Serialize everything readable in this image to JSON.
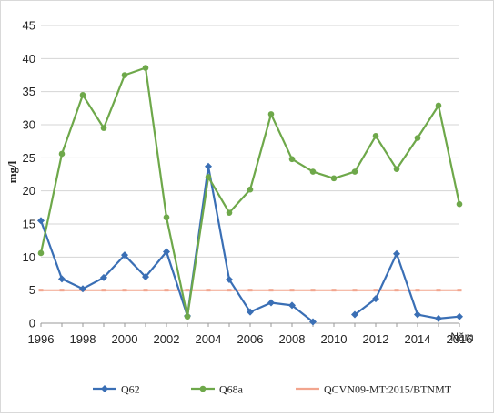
{
  "chart_data": {
    "type": "line",
    "title": "",
    "xlabel": "Năm",
    "ylabel": "mg/l",
    "xlim": [
      1996,
      2016
    ],
    "ylim": [
      0,
      45
    ],
    "x_ticks": [
      "1996",
      "1998",
      "2000",
      "2002",
      "2004",
      "2006",
      "2008",
      "2010",
      "2012",
      "2014",
      "2016"
    ],
    "y_ticks": [
      "0",
      "5",
      "10",
      "15",
      "20",
      "25",
      "30",
      "35",
      "40",
      "45"
    ],
    "grid": "horizontal",
    "legend_position": "bottom",
    "series": [
      {
        "name": "Q62",
        "color": "#3a6fb5",
        "marker": "diamond",
        "points": [
          [
            1996,
            15.5
          ],
          [
            1997,
            6.7
          ],
          [
            1998,
            5.2
          ],
          [
            1999,
            6.9
          ],
          [
            2000,
            10.3
          ],
          [
            2001,
            7.0
          ],
          [
            2002,
            10.8
          ],
          [
            2003,
            1.1
          ],
          [
            2004,
            23.7
          ],
          [
            2005,
            6.6
          ],
          [
            2006,
            1.7
          ],
          [
            2007,
            3.1
          ],
          [
            2008,
            2.7
          ],
          [
            2009,
            0.2
          ],
          [
            2010,
            null
          ],
          [
            2011,
            1.3
          ],
          [
            2012,
            3.7
          ],
          [
            2013,
            10.5
          ],
          [
            2014,
            1.3
          ],
          [
            2015,
            0.7
          ],
          [
            2016,
            1.0
          ]
        ]
      },
      {
        "name": "Q68a",
        "color": "#6ea84a",
        "marker": "circle",
        "points": [
          [
            1996,
            10.6
          ],
          [
            1997,
            25.6
          ],
          [
            1998,
            34.5
          ],
          [
            1999,
            29.5
          ],
          [
            2000,
            37.5
          ],
          [
            2001,
            38.6
          ],
          [
            2002,
            16.0
          ],
          [
            2003,
            1.0
          ],
          [
            2004,
            22.1
          ],
          [
            2005,
            16.7
          ],
          [
            2006,
            20.2
          ],
          [
            2007,
            31.6
          ],
          [
            2008,
            24.8
          ],
          [
            2009,
            22.9
          ],
          [
            2010,
            21.9
          ],
          [
            2011,
            22.9
          ],
          [
            2012,
            28.3
          ],
          [
            2013,
            23.3
          ],
          [
            2014,
            28.0
          ],
          [
            2015,
            32.9
          ],
          [
            2016,
            18.0
          ]
        ]
      },
      {
        "name": "QCVN09-MT:2015/BTNMT",
        "color": "#f2a58e",
        "marker": "none",
        "points": [
          [
            1996,
            5
          ],
          [
            1997,
            5
          ],
          [
            1998,
            5
          ],
          [
            1999,
            5
          ],
          [
            2000,
            5
          ],
          [
            2001,
            5
          ],
          [
            2002,
            5
          ],
          [
            2003,
            5
          ],
          [
            2004,
            5
          ],
          [
            2005,
            5
          ],
          [
            2006,
            5
          ],
          [
            2007,
            5
          ],
          [
            2008,
            5
          ],
          [
            2009,
            5
          ],
          [
            2010,
            5
          ],
          [
            2011,
            5
          ],
          [
            2012,
            5
          ],
          [
            2013,
            5
          ],
          [
            2014,
            5
          ],
          [
            2015,
            5
          ],
          [
            2016,
            5
          ]
        ]
      }
    ]
  }
}
